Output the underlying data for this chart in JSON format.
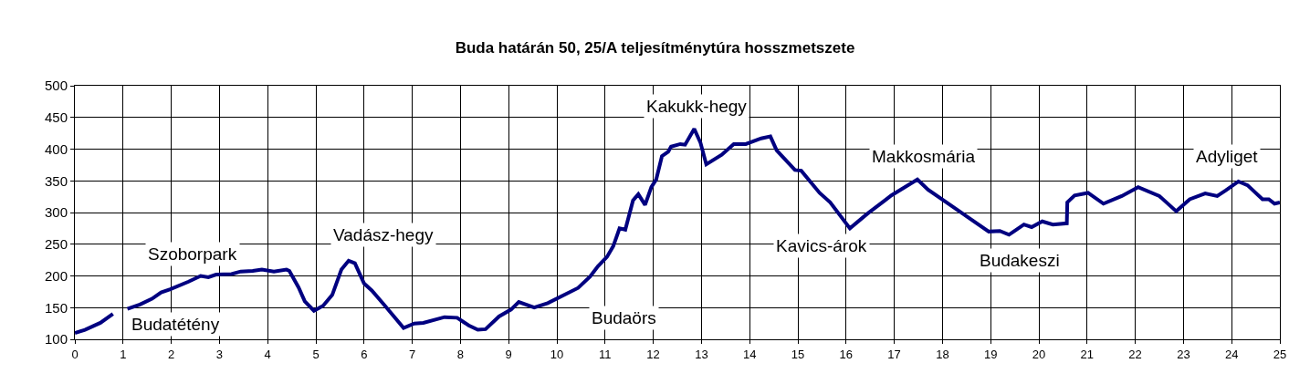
{
  "chart_data": {
    "type": "line",
    "title": "Buda határán 50, 25/A teljesítménytúra hosszmetszete",
    "x": [
      0,
      0.21,
      0.53,
      0.79,
      0.95,
      1.09,
      1.35,
      1.6,
      1.79,
      1.98,
      2.36,
      2.61,
      2.77,
      2.93,
      3.25,
      3.44,
      3.69,
      3.88,
      4.13,
      4.39,
      4.45,
      4.64,
      4.77,
      4.96,
      5.15,
      5.34,
      5.53,
      5.68,
      5.81,
      6.0,
      6.16,
      6.41,
      6.82,
      7.04,
      7.23,
      7.67,
      7.93,
      8.17,
      8.36,
      8.52,
      8.8,
      9.05,
      9.21,
      9.53,
      9.81,
      10.44,
      10.69,
      10.85,
      11.04,
      11.17,
      11.3,
      11.42,
      11.58,
      11.69,
      11.83,
      11.96,
      12.06,
      12.18,
      12.31,
      12.37,
      12.56,
      12.66,
      12.85,
      12.98,
      13.1,
      13.42,
      13.67,
      13.92,
      14.24,
      14.43,
      14.56,
      14.94,
      15.07,
      15.45,
      15.67,
      16.08,
      16.44,
      16.82,
      16.94,
      17.48,
      17.7,
      18.33,
      18.52,
      18.96,
      19.19,
      19.38,
      19.69,
      19.85,
      20.07,
      20.29,
      20.58,
      20.59,
      20.74,
      21.02,
      21.34,
      21.72,
      22.06,
      22.5,
      22.85,
      23.13,
      23.45,
      23.7,
      23.88,
      24.14,
      24.33,
      24.64,
      24.77,
      24.89,
      25
    ],
    "series": [
      {
        "color": "#000080",
        "values": [
          110,
          115,
          126,
          140,
          null,
          148,
          155,
          164,
          174,
          179,
          191,
          200,
          198,
          202,
          203,
          207,
          208,
          210,
          207,
          210,
          208,
          182,
          160,
          145,
          153,
          170,
          210,
          224,
          220,
          188,
          177,
          155,
          118,
          125,
          126,
          135,
          134,
          122,
          115,
          116,
          136,
          147,
          159,
          150,
          157,
          181,
          199,
          215,
          230,
          247,
          275,
          273,
          319,
          329,
          312,
          340,
          352,
          389,
          396,
          404,
          408,
          407,
          432,
          410,
          376,
          391,
          408,
          408,
          417,
          420,
          398,
          367,
          366,
          331,
          316,
          275,
          298,
          320,
          327,
          352,
          336,
          303,
          293,
          270,
          271,
          265,
          281,
          277,
          286,
          281,
          283,
          316,
          327,
          331,
          314,
          326,
          340,
          326,
          302,
          321,
          330,
          326,
          335,
          349,
          343,
          321,
          321,
          314,
          316
        ]
      }
    ],
    "xlim": [
      0,
      25
    ],
    "xticks": [
      0,
      1,
      2,
      3,
      4,
      5,
      6,
      7,
      8,
      9,
      10,
      11,
      12,
      13,
      14,
      15,
      16,
      17,
      18,
      19,
      20,
      21,
      22,
      23,
      24,
      25
    ],
    "ylim": [
      100,
      500
    ],
    "yticks": [
      100,
      150,
      200,
      250,
      300,
      350,
      400,
      450,
      500
    ],
    "grid": true,
    "marker": "none",
    "line_style": "solid",
    "annotations": [
      "Budatétény",
      "Szoborpark",
      "Vadász-hegy",
      "Budaörs",
      "Kakukk-hegy",
      "Kavics-árok",
      "Makkosmária",
      "Budakeszi",
      "Adyliget"
    ]
  }
}
